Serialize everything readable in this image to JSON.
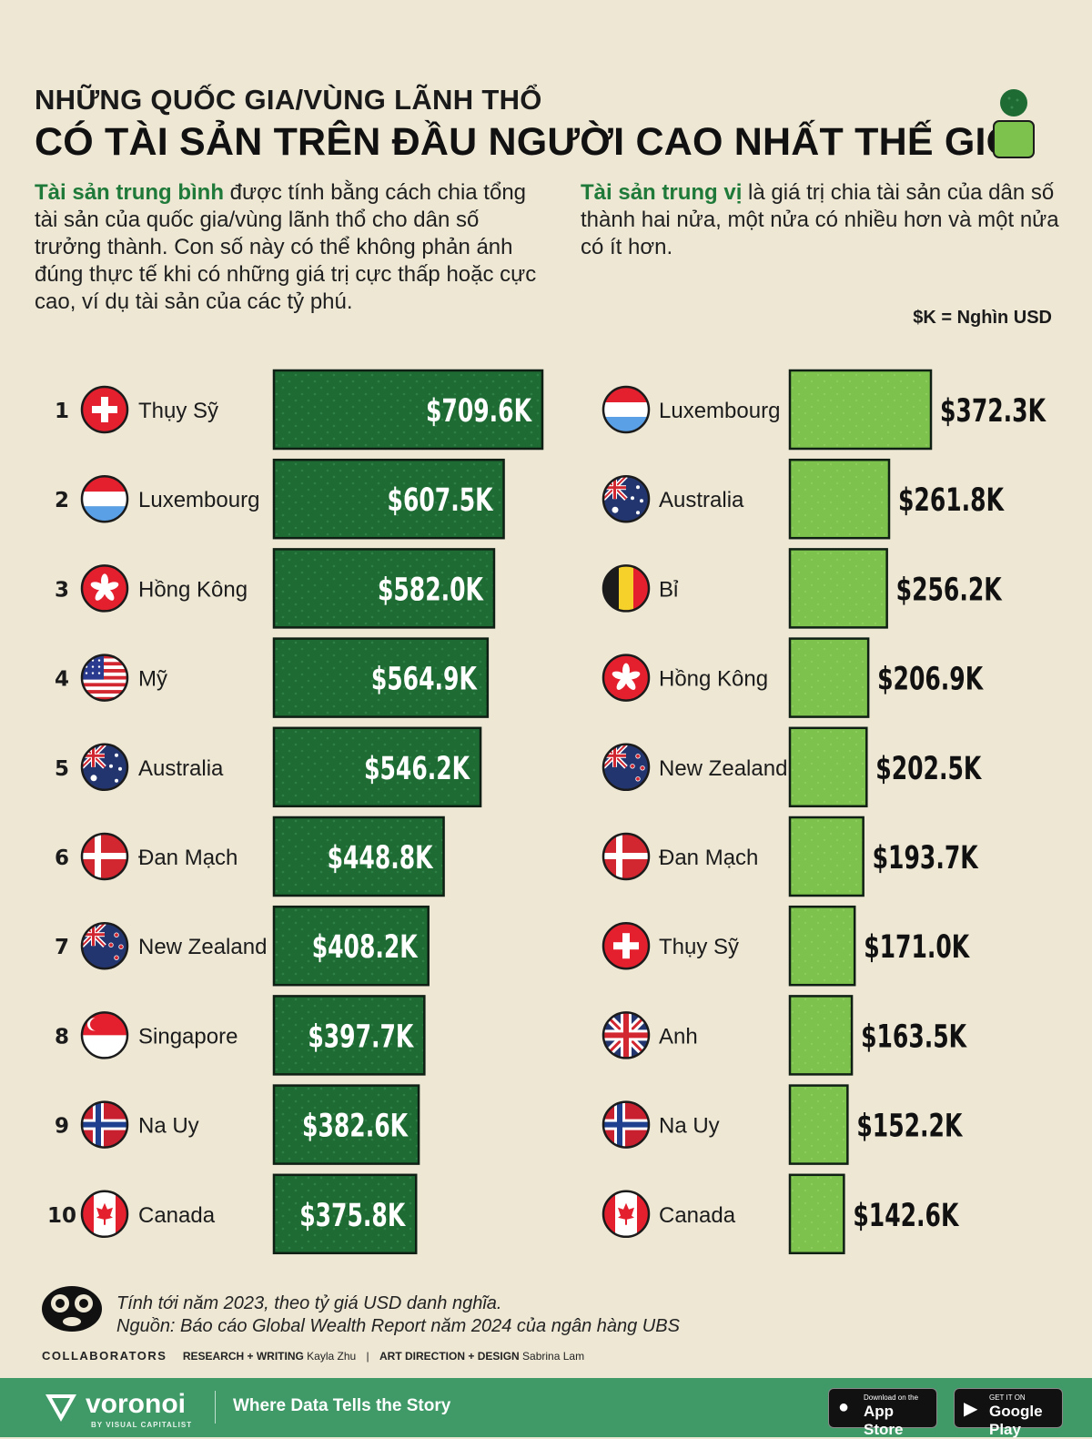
{
  "header": {
    "title_top": "NHỮNG QUỐC GIA/VÙNG LÃNH THỔ",
    "title_main": "CÓ TÀI SẢN TRÊN ĐẦU NGƯỜI CAO NHẤT THẾ GIỚI",
    "icon": "person-icon"
  },
  "description": {
    "left_highlight": "Tài sản trung bình",
    "left_text": " được tính bằng cách chia tổng tài sản của quốc gia/vùng lãnh thổ cho dân số trưởng thành. Con số này có thể không phản ánh đúng thực tế khi có những giá trị cực thấp hoặc cực cao, ví dụ tài sản của các tỷ phú.",
    "right_highlight": "Tài sản trung vị",
    "right_text": " là giá trị chia tài sản của dân số thành hai nửa, một nửa có nhiều hơn và một nửa có ít hơn.",
    "unit_note": "$K = Nghìn USD"
  },
  "colors": {
    "background": "#ede7d4",
    "mean_bar": "#1e6b34",
    "median_bar": "#7cc24c",
    "highlight_text": "#1f7a3a",
    "footer": "#3f9a68"
  },
  "chart_data": [
    {
      "type": "bar",
      "orientation": "horizontal",
      "series_label": "Tài sản trung bình",
      "unit": "$K",
      "categories": [
        "Thụy Sỹ",
        "Luxembourg",
        "Hồng Kông",
        "Mỹ",
        "Australia",
        "Đan Mạch",
        "New Zealand",
        "Singapore",
        "Na Uy",
        "Canada"
      ],
      "ranks": [
        "1",
        "2",
        "3",
        "4",
        "5",
        "6",
        "7",
        "8",
        "9",
        "10"
      ],
      "flags": [
        "switzerland",
        "luxembourg",
        "hongkong",
        "usa",
        "australia",
        "denmark",
        "newzealand",
        "singapore",
        "norway",
        "canada"
      ],
      "values": [
        709.6,
        607.5,
        582.0,
        564.9,
        546.2,
        448.8,
        408.2,
        397.7,
        382.6,
        375.8
      ],
      "labels": [
        "$709.6K",
        "$607.5K",
        "$582.0K",
        "$564.9K",
        "$546.2K",
        "$448.8K",
        "$408.2K",
        "$397.7K",
        "$382.6K",
        "$375.8K"
      ]
    },
    {
      "type": "bar",
      "orientation": "horizontal",
      "series_label": "Tài sản trung vị",
      "unit": "$K",
      "categories": [
        "Luxembourg",
        "Australia",
        "Bỉ",
        "Hồng Kông",
        "New Zealand",
        "Đan Mạch",
        "Thụy Sỹ",
        "Anh",
        "Na Uy",
        "Canada"
      ],
      "flags": [
        "luxembourg",
        "australia",
        "belgium",
        "hongkong",
        "newzealand",
        "denmark",
        "switzerland",
        "uk",
        "norway",
        "canada"
      ],
      "values": [
        372.3,
        261.8,
        256.2,
        206.9,
        202.5,
        193.7,
        171.0,
        163.5,
        152.2,
        142.6
      ],
      "labels": [
        "$372.3K",
        "$261.8K",
        "$256.2K",
        "$206.9K",
        "$202.5K",
        "$193.7K",
        "$171.0K",
        "$163.5K",
        "$152.2K",
        "$142.6K"
      ]
    }
  ],
  "footer": {
    "note_line1": "Tính tới năm 2023, theo tỷ giá USD danh nghĩa.",
    "note_line2": "Nguồn: Báo cáo Global Wealth Report năm 2024 của ngân hàng UBS",
    "collaborators": "COLLABORATORS",
    "research_label": "RESEARCH + WRITING",
    "research_name": "Kayla Zhu",
    "design_label": "ART DIRECTION + DESIGN",
    "design_name": "Sabrina Lam",
    "brand": "voronoi",
    "brand_sub": "BY VISUAL CAPITALIST",
    "tagline": "Where Data Tells the Story",
    "appstore_small": "Download on the",
    "appstore_big": "App Store",
    "googleplay_small": "GET IT ON",
    "googleplay_big": "Google Play"
  }
}
